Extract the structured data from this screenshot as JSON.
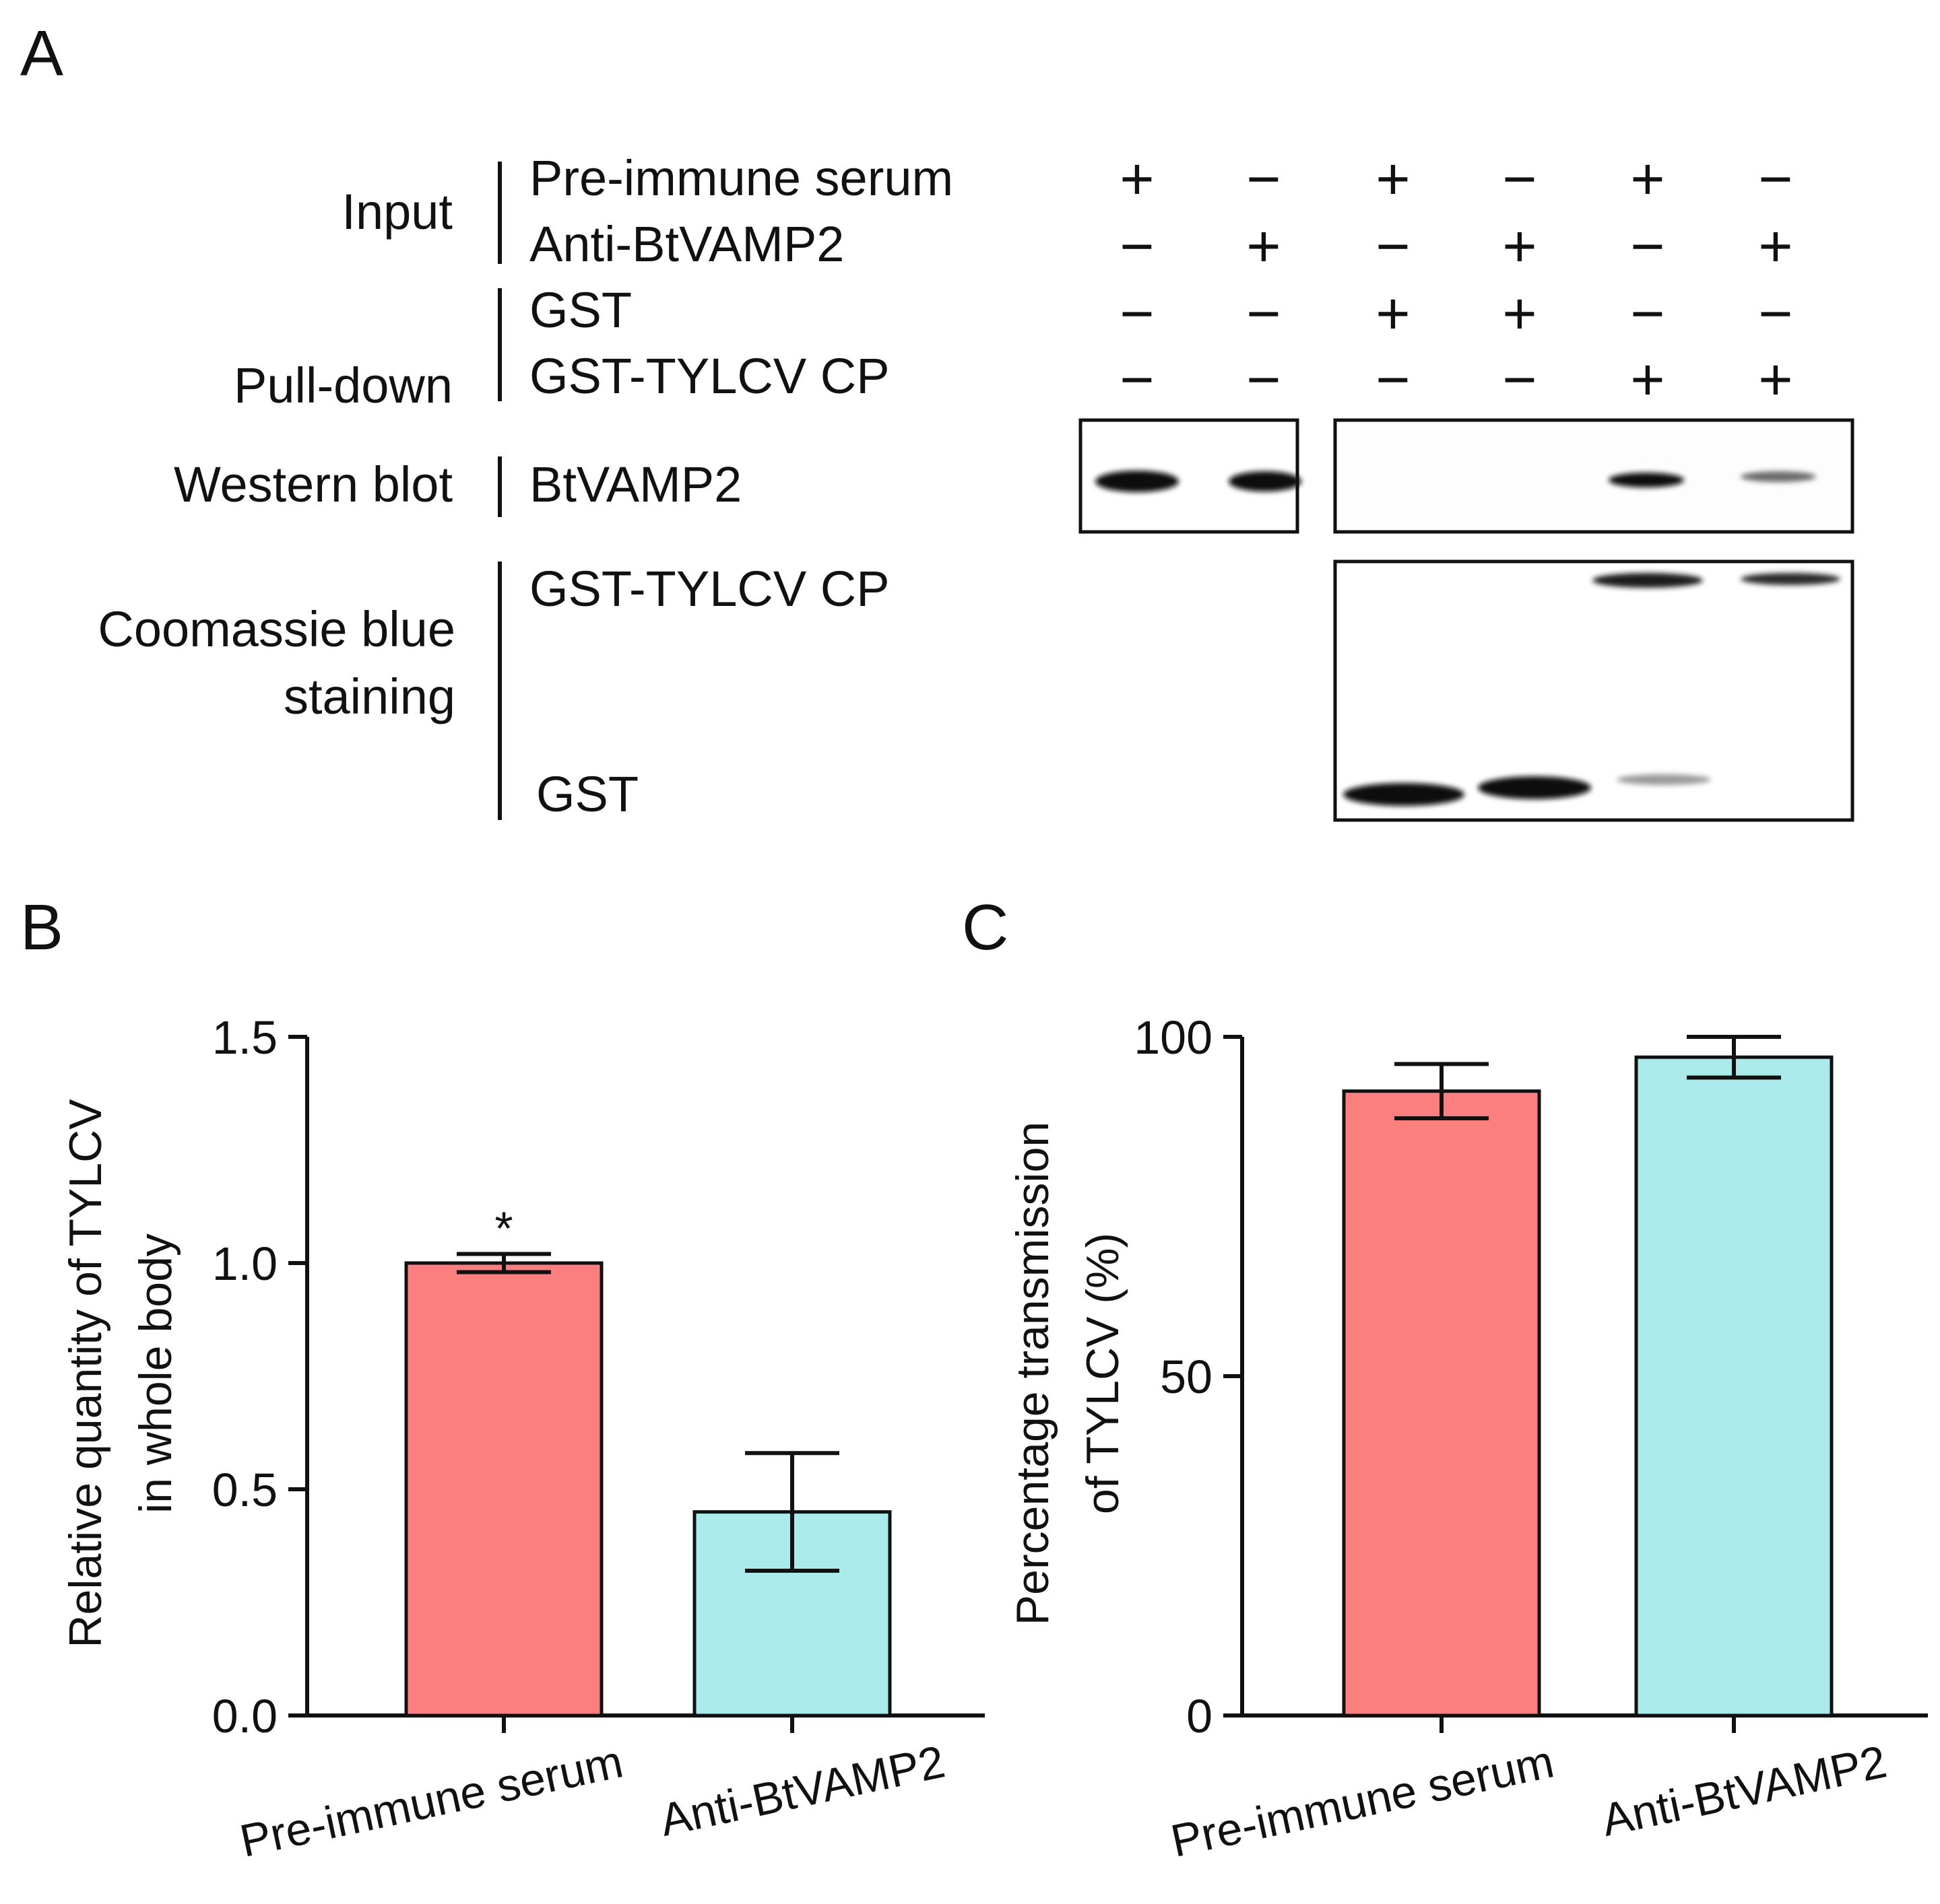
{
  "panels": {
    "a": "A",
    "b": "B",
    "c": "C"
  },
  "blot": {
    "row_groups": [
      {
        "group": "Input",
        "rows": [
          "Pre-immune serum",
          "Anti-BtVAMP2"
        ]
      },
      {
        "group": "Pull-down",
        "rows": [
          "GST",
          "GST-TYLCV CP"
        ]
      }
    ],
    "signs": [
      [
        "+",
        "−",
        "+",
        "−",
        "+",
        "−"
      ],
      [
        "−",
        "+",
        "−",
        "+",
        "−",
        "+"
      ],
      [
        "−",
        "−",
        "+",
        "+",
        "−",
        "−"
      ],
      [
        "−",
        "−",
        "−",
        "−",
        "+",
        "+"
      ]
    ],
    "western": {
      "group": "Western blot",
      "row": "BtVAMP2"
    },
    "coomassie": {
      "group_line1": "Coomassie blue",
      "group_line2": "staining",
      "top_row": "GST-TYLCV CP",
      "bottom_row": "GST"
    }
  },
  "chart_data": [
    {
      "type": "bar",
      "panel": "B",
      "categories": [
        "Pre-immune serum",
        "Anti-BtVAMP2"
      ],
      "values": [
        1.0,
        0.45
      ],
      "errors": [
        0.02,
        0.13
      ],
      "significance": [
        "*",
        ""
      ],
      "colors": [
        "#fb7f7f",
        "#abeaea"
      ],
      "ylabel_line1": "Relative quantity of TYLCV",
      "ylabel_line2": "in whole body",
      "xlabel": "",
      "ylim": [
        0,
        1.5
      ],
      "yticks": [
        0.0,
        0.5,
        1.0,
        1.5
      ],
      "ytick_labels": [
        "0.0",
        "0.5",
        "1.0",
        "1.5"
      ]
    },
    {
      "type": "bar",
      "panel": "C",
      "categories": [
        "Pre-immune serum",
        "Anti-BtVAMP2"
      ],
      "values": [
        92,
        97
      ],
      "errors": [
        4,
        3
      ],
      "colors": [
        "#fb7f7f",
        "#abeaea"
      ],
      "ylabel_line1": "Percentage transmission",
      "ylabel_line2": "of TYLCV (%)",
      "xlabel": "",
      "ylim": [
        0,
        100
      ],
      "yticks": [
        0,
        50,
        100
      ],
      "ytick_labels": [
        "0",
        "50",
        "100"
      ]
    }
  ]
}
